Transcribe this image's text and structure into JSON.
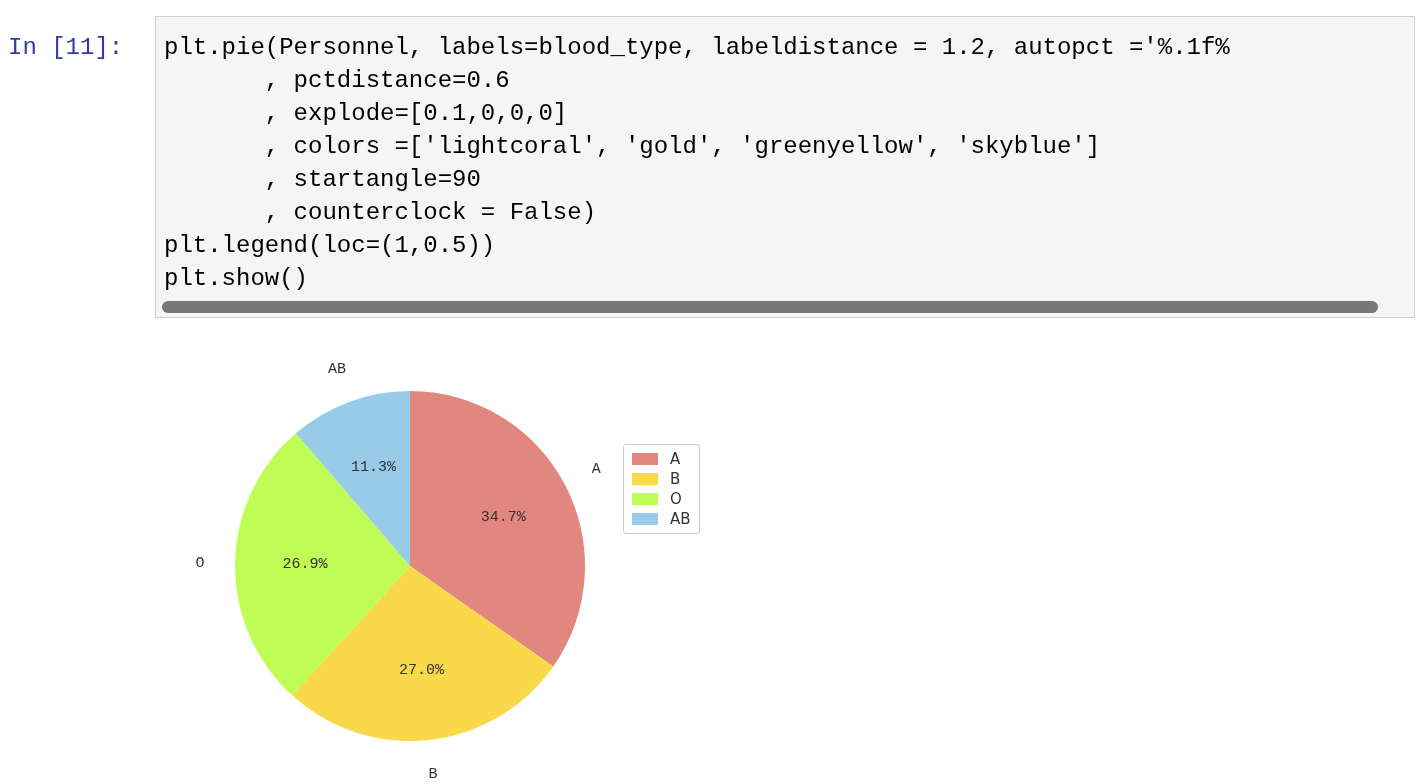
{
  "chart_data": {
    "type": "pie",
    "categories": [
      "A",
      "B",
      "O",
      "AB"
    ],
    "values": [
      34.7,
      27.0,
      26.9,
      11.3
    ],
    "value_labels": [
      "34.7%",
      "27.0%",
      "26.9%",
      "11.3%"
    ],
    "colors": [
      "#e1877f",
      "#f9d949",
      "#bffc56",
      "#98cbe8"
    ],
    "legend": "right",
    "annotations": [
      "In [11]:",
      "plt.pie(Personnel, labels=blood_type, labeldistance = 1.2, autopct ='%.1f%",
      "       , pctdistance=0.6",
      "       , explode=[0.1,0,0,0]",
      "       , colors =['lightcoral', 'gold', 'greenyellow', 'skyblue']",
      "       , startangle=90",
      "       , counterclock = False)",
      "plt.legend(loc=(1,0.5))",
      "plt.show()"
    ]
  }
}
